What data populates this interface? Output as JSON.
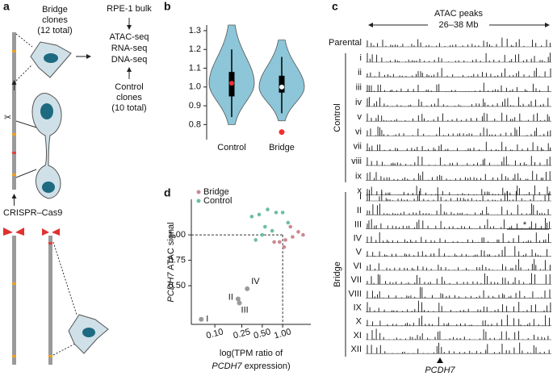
{
  "panel_labels": [
    "a",
    "b",
    "c",
    "d"
  ],
  "panel_a": {
    "bridge_clones": [
      "Bridge",
      "clones",
      "(12 total)"
    ],
    "bulk": "RPE-1 bulk",
    "assays": [
      "ATAC-seq",
      "RNA-seq",
      "DNA-seq"
    ],
    "control_clones": [
      "Control",
      "clones",
      "(10 total)"
    ],
    "crispr": "CRISPR–Cas9"
  },
  "panel_c": {
    "title": [
      "ATAC peaks",
      "26–38 Mb"
    ],
    "parental": "Parental",
    "control_group": "Control",
    "control_rows": [
      "i",
      "ii",
      "iii",
      "iv",
      "v",
      "vi",
      "vii",
      "viii",
      "ix",
      "x"
    ],
    "bridge_group": "Bridge",
    "bridge_rows": [
      "I",
      "II",
      "III",
      "IV",
      "V",
      "VI",
      "VII",
      "VIII",
      "IX",
      "X",
      "XI",
      "XII"
    ],
    "gene": "PCDH7",
    "note": "*"
  },
  "chart_data": [
    {
      "type": "violin",
      "categories": [
        "Control",
        "Bridge"
      ],
      "groups": [
        {
          "min": 0.8,
          "whisker_low": 0.84,
          "q1": 0.95,
          "median": 1.02,
          "q3": 1.08,
          "whisker_high": 1.2,
          "max": 1.33,
          "median_color": "#f03030",
          "outliers": []
        },
        {
          "min": 0.82,
          "whisker_low": 0.86,
          "q1": 0.97,
          "median": 1.0,
          "q3": 1.06,
          "whisker_high": 1.16,
          "max": 1.25,
          "median_color": "#ffffff",
          "outliers": [
            0.76
          ]
        }
      ],
      "color": "#8cc6d8",
      "outlier_color": "#f03030",
      "ylim": [
        0.72,
        1.33
      ],
      "yticks": [
        0.8,
        0.9,
        {
          "value": 1,
          "label": "1.0"
        },
        1.1,
        1.2,
        1.3
      ]
    },
    {
      "type": "scatter",
      "series": [
        {
          "name": "Bridge",
          "color": "#c98a90",
          "x": [
            0.9,
            1.1,
            1.4,
            1.7,
            1.3,
            0.75,
            2.0,
            1.05
          ],
          "y": [
            0.93,
            0.95,
            0.98,
            1.03,
            1.08,
            0.93,
            1.0,
            0.88
          ]
        },
        {
          "name": "Control",
          "color": "#6cbf9e",
          "x": [
            0.35,
            0.45,
            0.6,
            0.8,
            1.0,
            0.55,
            0.7,
            0.4,
            1.2,
            0.5
          ],
          "y": [
            1.18,
            1.2,
            1.25,
            1.22,
            1.22,
            1.08,
            1.04,
            0.95,
            1.12,
            1.0
          ]
        }
      ],
      "annotations": [
        {
          "label": "I",
          "x": 0.063,
          "y": 0.17
        },
        {
          "label": "II",
          "x": 0.22,
          "y": 0.37
        },
        {
          "label": "III",
          "x": 0.23,
          "y": 0.33
        },
        {
          "label": "IV",
          "x": 0.3,
          "y": 0.47
        }
      ],
      "annotation_color": "#9a9a9a",
      "log_x": true,
      "reference_lines": {
        "x": 1,
        "y": 1
      },
      "xlim": [
        0.045,
        2.6
      ],
      "ylim": [
        0.12,
        1.35
      ],
      "xticks": [
        {
          "value": 0.1,
          "label": "0.10"
        },
        {
          "value": 0.25,
          "label": "0.25"
        },
        {
          "value": 0.5,
          "label": "0.50"
        },
        {
          "value": 1,
          "label": "1.00"
        }
      ],
      "yticks": [
        {
          "value": 0.5,
          "label": "0.50"
        },
        {
          "value": 0.75,
          "label": "0.75"
        },
        {
          "value": 1,
          "label": "1.00"
        }
      ],
      "ylabel_gene": "PCDH7",
      "ylabel": " ATAC signal",
      "xlabel": "log(TPM ratio of",
      "xlabel_gene": "PCDH7",
      "xlabel_end": " expression)"
    }
  ]
}
